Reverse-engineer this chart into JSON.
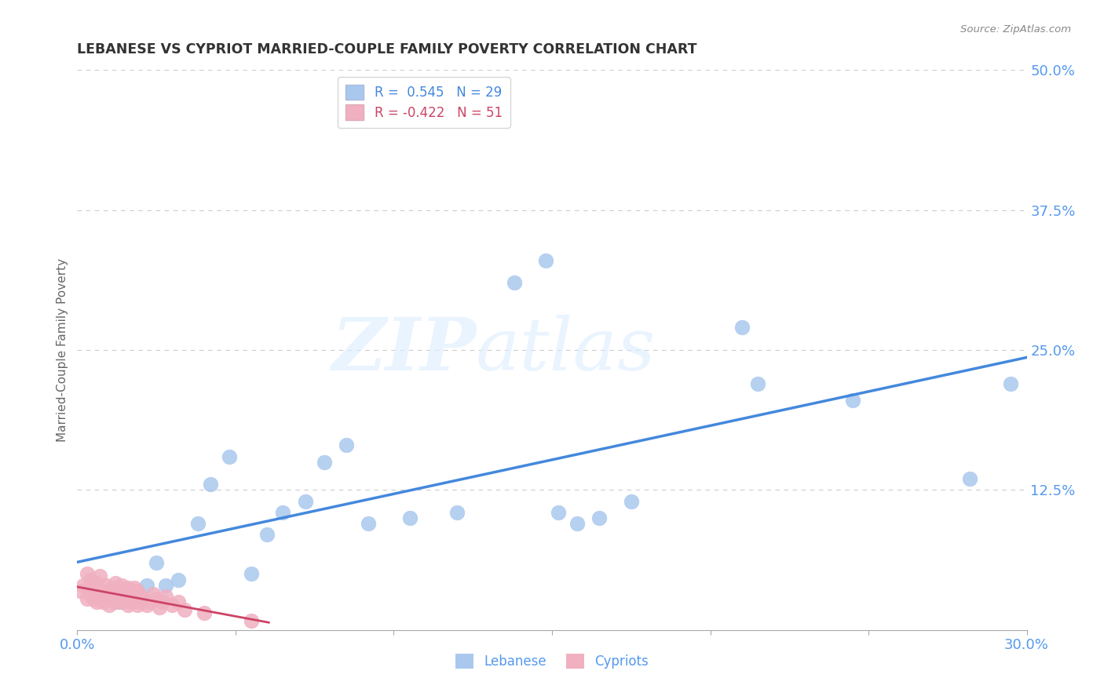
{
  "title": "LEBANESE VS CYPRIOT MARRIED-COUPLE FAMILY POVERTY CORRELATION CHART",
  "source": "Source: ZipAtlas.com",
  "ylabel_label": "Married-Couple Family Poverty",
  "x_min": 0.0,
  "x_max": 0.3,
  "y_min": 0.0,
  "y_max": 0.5,
  "x_ticks": [
    0.0,
    0.05,
    0.1,
    0.15,
    0.2,
    0.25,
    0.3
  ],
  "x_tick_labels": [
    "0.0%",
    "",
    "",
    "",
    "",
    "",
    "30.0%"
  ],
  "y_ticks": [
    0.0,
    0.125,
    0.25,
    0.375,
    0.5
  ],
  "y_tick_labels": [
    "",
    "12.5%",
    "25.0%",
    "37.5%",
    "50.0%"
  ],
  "grid_color": "#cccccc",
  "background_color": "#ffffff",
  "lebanese_color": "#aac8ee",
  "cypriot_color": "#f0b0c0",
  "lebanese_line_color": "#4488dd",
  "cypriot_line_color": "#cc4466",
  "watermark_zip": "ZIP",
  "watermark_atlas": "atlas",
  "legend_R_lebanese": "0.545",
  "legend_N_lebanese": "29",
  "legend_R_cypriot": "-0.422",
  "legend_N_cypriot": "51",
  "lebanese_x": [
    0.013,
    0.017,
    0.022,
    0.025,
    0.028,
    0.032,
    0.038,
    0.042,
    0.048,
    0.055,
    0.06,
    0.065,
    0.072,
    0.078,
    0.085,
    0.092,
    0.105,
    0.12,
    0.138,
    0.148,
    0.152,
    0.158,
    0.165,
    0.175,
    0.21,
    0.215,
    0.245,
    0.282,
    0.295
  ],
  "lebanese_y": [
    0.025,
    0.03,
    0.04,
    0.06,
    0.04,
    0.045,
    0.095,
    0.13,
    0.155,
    0.05,
    0.085,
    0.105,
    0.115,
    0.15,
    0.165,
    0.095,
    0.1,
    0.105,
    0.31,
    0.33,
    0.105,
    0.095,
    0.1,
    0.115,
    0.27,
    0.22,
    0.205,
    0.135,
    0.22
  ],
  "cypriot_x": [
    0.001,
    0.002,
    0.003,
    0.003,
    0.004,
    0.004,
    0.005,
    0.005,
    0.006,
    0.006,
    0.007,
    0.007,
    0.008,
    0.008,
    0.009,
    0.009,
    0.01,
    0.01,
    0.011,
    0.011,
    0.012,
    0.012,
    0.013,
    0.013,
    0.014,
    0.014,
    0.015,
    0.015,
    0.016,
    0.016,
    0.017,
    0.017,
    0.018,
    0.018,
    0.019,
    0.019,
    0.02,
    0.02,
    0.021,
    0.022,
    0.023,
    0.024,
    0.025,
    0.026,
    0.027,
    0.028,
    0.03,
    0.032,
    0.034,
    0.04,
    0.055
  ],
  "cypriot_y": [
    0.035,
    0.04,
    0.028,
    0.05,
    0.032,
    0.045,
    0.028,
    0.038,
    0.025,
    0.042,
    0.03,
    0.048,
    0.025,
    0.035,
    0.028,
    0.04,
    0.022,
    0.032,
    0.028,
    0.038,
    0.025,
    0.042,
    0.03,
    0.035,
    0.025,
    0.04,
    0.028,
    0.035,
    0.022,
    0.038,
    0.025,
    0.032,
    0.028,
    0.038,
    0.022,
    0.035,
    0.025,
    0.03,
    0.028,
    0.022,
    0.025,
    0.032,
    0.028,
    0.02,
    0.025,
    0.03,
    0.022,
    0.025,
    0.018,
    0.015,
    0.008
  ]
}
